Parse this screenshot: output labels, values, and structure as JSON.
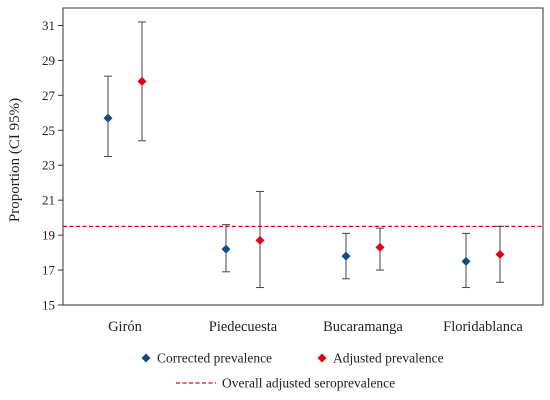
{
  "chart_data": {
    "type": "scatter",
    "categories": [
      "Girón",
      "Piedecuesta",
      "Bucaramanga",
      "Floridablanca"
    ],
    "series": [
      {
        "name": "Corrected prevalence",
        "color": "#0f4c81",
        "marker": "diamond",
        "values": [
          25.7,
          18.2,
          17.8,
          17.5
        ],
        "lower": [
          23.5,
          16.9,
          16.5,
          16.0
        ],
        "upper": [
          28.1,
          19.6,
          19.1,
          19.1
        ]
      },
      {
        "name": "Adjusted prevalence",
        "color": "#e3001b",
        "marker": "diamond",
        "values": [
          27.8,
          18.7,
          18.3,
          17.9
        ],
        "lower": [
          24.4,
          16.0,
          17.0,
          16.3
        ],
        "upper": [
          31.2,
          21.5,
          19.4,
          19.5
        ]
      }
    ],
    "reference_line": {
      "name": "Overall adjusted seroprevalence",
      "value": 19.5,
      "color": "#e3001b",
      "style": "dashed"
    },
    "ylabel": "Proportion (CI 95%)",
    "xlabel": "",
    "ylim": [
      15,
      32
    ],
    "yticks": [
      15,
      17,
      19,
      21,
      23,
      25,
      27,
      29,
      31
    ],
    "legend_position": "bottom",
    "grid": false
  }
}
